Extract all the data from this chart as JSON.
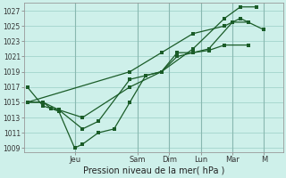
{
  "xlabel": "Pression niveau de la mer( hPa )",
  "bg_color": "#cef0ea",
  "grid_color": "#a8d8d0",
  "line_color": "#1a5c28",
  "ylim": [
    1008.5,
    1028.0
  ],
  "yticks": [
    1009,
    1011,
    1013,
    1015,
    1017,
    1019,
    1021,
    1023,
    1025,
    1027
  ],
  "day_labels": [
    "Jeu",
    "Sam",
    "Dim",
    "Lun",
    "Mar",
    "M"
  ],
  "day_positions": [
    1.5,
    3.5,
    4.5,
    5.5,
    6.5,
    7.5
  ],
  "xlim": [
    -0.1,
    8.1
  ],
  "line1_x": [
    0.0,
    0.5,
    0.75,
    1.0,
    1.5,
    1.75,
    2.25,
    2.75,
    3.25,
    3.75,
    4.25,
    4.75,
    5.25,
    5.75,
    6.25,
    7.0
  ],
  "line1_y": [
    1017,
    1014.5,
    1014.2,
    1013.8,
    1009.0,
    1009.5,
    1011.0,
    1011.5,
    1015.0,
    1018.5,
    1019.0,
    1021.5,
    1021.5,
    1021.8,
    1022.5,
    1022.5
  ],
  "line2_x": [
    0.0,
    0.5,
    0.75,
    1.0,
    1.75,
    2.25,
    3.25,
    3.75,
    4.25,
    4.75,
    5.25,
    5.75,
    6.5,
    7.0
  ],
  "line2_y": [
    1015,
    1015.0,
    1014.2,
    1014.0,
    1011.5,
    1012.5,
    1018.0,
    1018.5,
    1019.0,
    1021.0,
    1021.5,
    1022.0,
    1025.5,
    1025.5
  ],
  "line3_x": [
    0.0,
    0.5,
    1.0,
    1.75,
    3.25,
    4.25,
    5.25,
    6.25,
    6.75,
    7.25
  ],
  "line3_y": [
    1015,
    1015.0,
    1014.0,
    1013.0,
    1017.0,
    1019.0,
    1022.0,
    1026.0,
    1027.5,
    1027.5
  ],
  "line4_x": [
    0.0,
    3.25,
    4.25,
    5.25,
    6.25,
    6.75,
    7.5
  ],
  "line4_y": [
    1015,
    1019.0,
    1021.5,
    1024.0,
    1025.0,
    1026.0,
    1024.5
  ]
}
